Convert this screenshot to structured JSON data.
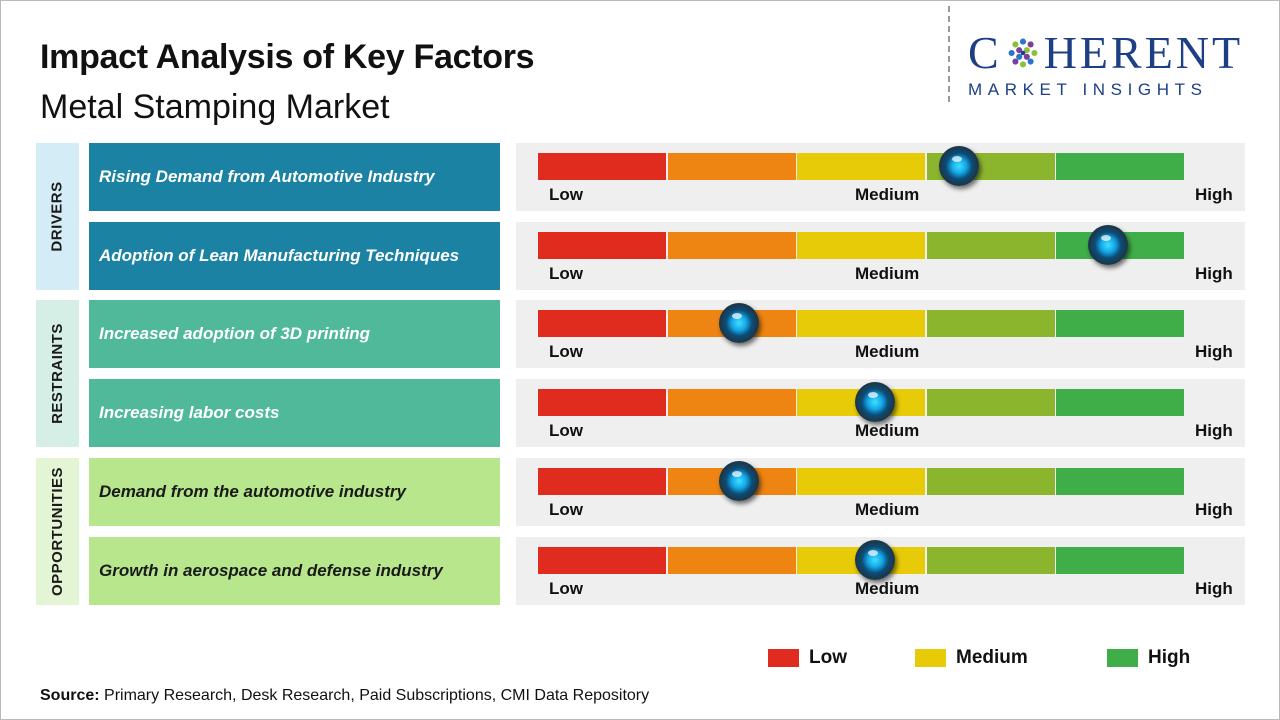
{
  "header": {
    "title": "Impact Analysis of Key Factors",
    "subtitle": "Metal Stamping Market"
  },
  "logo": {
    "word_left": "C",
    "word_right": "HERENT",
    "tagline": "MARKET INSIGHTS"
  },
  "scale": {
    "low_label": "Low",
    "medium_label": "Medium",
    "high_label": "High"
  },
  "colors": {
    "segments": [
      "#e02b1f",
      "#ee8412",
      "#e8cb08",
      "#8cb52e",
      "#3fae49"
    ],
    "drivers_fill": "#1b82a4",
    "restraints_fill": "#4fb99a",
    "opportunities_fill": "#b7e68d",
    "group_label_bg_drivers": "#d4ecf6",
    "group_label_bg_restraints": "#d6efe6",
    "group_label_bg_opportunities": "#e3f5d4"
  },
  "chart_data": {
    "type": "gauge-bar",
    "scale_levels": [
      "Low",
      "Medium",
      "High"
    ],
    "scale_range": [
      0,
      100
    ],
    "groups": [
      {
        "name": "DRIVERS",
        "factors": [
          {
            "label": "Rising Demand from Automotive Industry",
            "impact": 65
          },
          {
            "label": "Adoption of Lean Manufacturing Techniques",
            "impact": 88
          }
        ]
      },
      {
        "name": "RESTRAINTS",
        "factors": [
          {
            "label": "Increased adoption of 3D printing",
            "impact": 31
          },
          {
            "label": "Increasing labor costs",
            "impact": 52
          }
        ]
      },
      {
        "name": "OPPORTUNITIES",
        "factors": [
          {
            "label": "Demand from the automotive industry",
            "impact": 31
          },
          {
            "label": "Growth in aerospace and defense industry",
            "impact": 52
          }
        ]
      }
    ],
    "legend": [
      {
        "label": "Low",
        "color": "#e02b1f"
      },
      {
        "label": "Medium",
        "color": "#e8cb08"
      },
      {
        "label": "High",
        "color": "#3fae49"
      }
    ]
  },
  "footer": {
    "source_label": "Source:",
    "source_text": " Primary Research, Desk Research, Paid Subscriptions, CMI Data Repository"
  }
}
